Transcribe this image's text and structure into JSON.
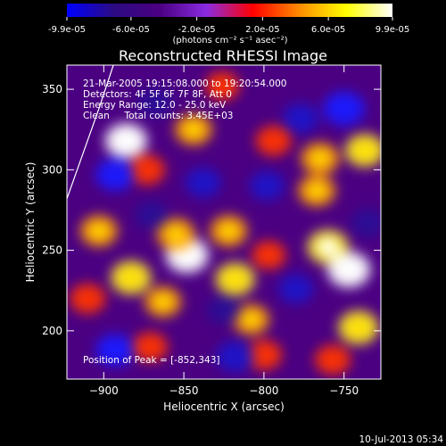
{
  "colorbar": {
    "tick_labels": [
      "-9.9e-05",
      "-6.0e-05",
      "-2.0e-05",
      "2.0e-05",
      "6.0e-05",
      "9.9e-05"
    ],
    "range": [
      -9.9e-05,
      9.9e-05
    ],
    "unit_label": "(photons cm⁻² s⁻¹ asec⁻²)"
  },
  "annotations": {
    "time_range": "21-Mar-2005 19:15:08.000 to 19:20:54.000",
    "detectors": "Detectors: 4F 5F 6F 7F 8F, Att 0",
    "energy_range": "Energy Range: 12.0 - 25.0 keV",
    "clean_counts": "Clean     Total counts: 3.45E+03",
    "peak_position": "Position of Peak = [-852,343]"
  },
  "footer": {
    "timestamp": "10-Jul-2013 05:34"
  },
  "chart_data": {
    "type": "heatmap",
    "title": "Reconstructed RHESSI Image",
    "xlabel": "Heliocentric X (arcsec)",
    "ylabel": "Heliocentric Y (arcsec)",
    "xlim": [
      -923,
      -727
    ],
    "ylim": [
      170,
      365
    ],
    "x_ticks": [
      -900,
      -850,
      -800,
      -750
    ],
    "y_ticks": [
      200,
      250,
      300,
      350
    ],
    "colormap": [
      "#0000ff",
      "#2b0b82",
      "#4b0082",
      "#8a2be2",
      "#ff0000",
      "#ff8c00",
      "#ffff00",
      "#ffffff"
    ],
    "peak": [
      -852,
      343
    ],
    "limb_points": [
      [
        -923,
        282
      ],
      [
        -913,
        310
      ],
      [
        -903,
        338
      ],
      [
        -894,
        365
      ]
    ],
    "blobs": [
      {
        "x": -886,
        "y": 318,
        "v": 0.95
      },
      {
        "x": -873,
        "y": 300,
        "v": 0.6
      },
      {
        "x": -844,
        "y": 325,
        "v": 0.7
      },
      {
        "x": -848,
        "y": 247,
        "v": 1.0
      },
      {
        "x": -855,
        "y": 260,
        "v": 0.75
      },
      {
        "x": -883,
        "y": 233,
        "v": 0.85
      },
      {
        "x": -863,
        "y": 218,
        "v": 0.65
      },
      {
        "x": -903,
        "y": 262,
        "v": 0.7
      },
      {
        "x": -822,
        "y": 262,
        "v": 0.7
      },
      {
        "x": -818,
        "y": 232,
        "v": 0.8
      },
      {
        "x": -808,
        "y": 207,
        "v": 0.65
      },
      {
        "x": -797,
        "y": 247,
        "v": 0.5
      },
      {
        "x": -760,
        "y": 252,
        "v": 0.9
      },
      {
        "x": -747,
        "y": 238,
        "v": 1.0
      },
      {
        "x": -741,
        "y": 202,
        "v": 0.85
      },
      {
        "x": -765,
        "y": 307,
        "v": 0.75
      },
      {
        "x": -767,
        "y": 287,
        "v": 0.7
      },
      {
        "x": -737,
        "y": 312,
        "v": 0.8
      },
      {
        "x": -794,
        "y": 318,
        "v": 0.6
      },
      {
        "x": -800,
        "y": 185,
        "v": 0.6
      },
      {
        "x": -871,
        "y": 190,
        "v": 0.55
      },
      {
        "x": -826,
        "y": 352,
        "v": 0.5
      },
      {
        "x": -910,
        "y": 220,
        "v": 0.6
      },
      {
        "x": -757,
        "y": 182,
        "v": 0.6
      },
      {
        "x": -893,
        "y": 297,
        "v": -0.75
      },
      {
        "x": -838,
        "y": 292,
        "v": -0.6
      },
      {
        "x": -750,
        "y": 338,
        "v": -0.9
      },
      {
        "x": -777,
        "y": 332,
        "v": -0.6
      },
      {
        "x": -893,
        "y": 188,
        "v": -0.75
      },
      {
        "x": -818,
        "y": 184,
        "v": -0.7
      },
      {
        "x": -798,
        "y": 290,
        "v": -0.55
      },
      {
        "x": -780,
        "y": 226,
        "v": -0.55
      },
      {
        "x": -868,
        "y": 342,
        "v": -0.5
      },
      {
        "x": -870,
        "y": 272,
        "v": -0.45
      },
      {
        "x": -735,
        "y": 267,
        "v": -0.5
      },
      {
        "x": -825,
        "y": 213,
        "v": -0.45
      }
    ]
  }
}
